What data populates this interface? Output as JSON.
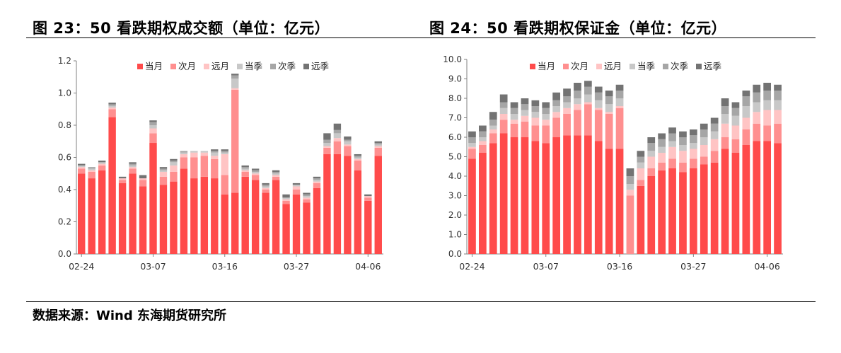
{
  "titles": {
    "left": "图 23：50 看跌期权成交额（单位：亿元）",
    "right": "图 24：50 看跌期权保证金（单位：亿元）"
  },
  "source": "数据来源：Wind   东海期货研究所",
  "colors": [
    "#ff4b4b",
    "#ff8f8f",
    "#ffc4c4",
    "#c8c8c8",
    "#a6a6a6",
    "#737373"
  ],
  "chart_data": [
    {
      "type": "bar",
      "stacked": true,
      "ylim": [
        0,
        1.2
      ],
      "yticks": [
        "0.0",
        "0.2",
        "0.4",
        "0.6",
        "0.8",
        "1.0",
        "1.2"
      ],
      "xtick_labels": [
        {
          "index": 0,
          "label": "02-24"
        },
        {
          "index": 7,
          "label": "03-07"
        },
        {
          "index": 14,
          "label": "03-16"
        },
        {
          "index": 21,
          "label": "03-27"
        },
        {
          "index": 28,
          "label": "04-06"
        }
      ],
      "legend": [
        "当月",
        "次月",
        "远月",
        "当季",
        "次季",
        "远季"
      ],
      "legend_position": "top",
      "grid": false,
      "series": [
        {
          "name": "当月",
          "values": [
            0.5,
            0.47,
            0.52,
            0.85,
            0.44,
            0.5,
            0.42,
            0.69,
            0.43,
            0.45,
            0.53,
            0.47,
            0.48,
            0.47,
            0.37,
            0.38,
            0.48,
            0.46,
            0.38,
            0.46,
            0.31,
            0.37,
            0.32,
            0.41,
            0.62,
            0.62,
            0.61,
            0.52,
            0.33,
            0.61
          ]
        },
        {
          "name": "次月",
          "values": [
            0.03,
            0.04,
            0.03,
            0.05,
            0.02,
            0.03,
            0.04,
            0.06,
            0.05,
            0.06,
            0.07,
            0.13,
            0.13,
            0.12,
            0.12,
            0.64,
            0.03,
            0.03,
            0.02,
            0.02,
            0.02,
            0.03,
            0.02,
            0.03,
            0.04,
            0.08,
            0.06,
            0.06,
            0.02,
            0.05
          ]
        },
        {
          "name": "远月",
          "values": [
            0.01,
            0.01,
            0.01,
            0.01,
            0.01,
            0.01,
            0.01,
            0.03,
            0.03,
            0.04,
            0.02,
            0.03,
            0.02,
            0.02,
            0.13,
            0.01,
            0.01,
            0.01,
            0.01,
            0.01,
            0.01,
            0.02,
            0.01,
            0.01,
            0.01,
            0.02,
            0.01,
            0.01,
            0.01,
            0.01
          ]
        },
        {
          "name": "当季",
          "values": [
            0.01,
            0.01,
            0.01,
            0.01,
            0.0,
            0.01,
            0.0,
            0.02,
            0.01,
            0.02,
            0.01,
            0.01,
            0.01,
            0.02,
            0.01,
            0.06,
            0.01,
            0.01,
            0.01,
            0.01,
            0.01,
            0.01,
            0.01,
            0.01,
            0.02,
            0.03,
            0.02,
            0.01,
            0.0,
            0.01
          ]
        },
        {
          "name": "次季",
          "values": [
            0.0,
            0.01,
            0.0,
            0.01,
            0.0,
            0.01,
            0.0,
            0.02,
            0.01,
            0.01,
            0.01,
            0.0,
            0.0,
            0.01,
            0.01,
            0.02,
            0.01,
            0.01,
            0.01,
            0.01,
            0.0,
            0.0,
            0.01,
            0.01,
            0.02,
            0.02,
            0.01,
            0.01,
            0.0,
            0.01
          ]
        },
        {
          "name": "远季",
          "values": [
            0.01,
            0.0,
            0.01,
            0.01,
            0.01,
            0.01,
            0.02,
            0.01,
            0.01,
            0.01,
            0.0,
            0.0,
            0.0,
            0.01,
            0.01,
            0.01,
            0.01,
            0.01,
            0.01,
            0.01,
            0.02,
            0.01,
            0.01,
            0.01,
            0.04,
            0.04,
            0.02,
            0.01,
            0.01,
            0.01
          ]
        }
      ]
    },
    {
      "type": "bar",
      "stacked": true,
      "ylim": [
        0,
        10
      ],
      "yticks": [
        "0.0",
        "1.0",
        "2.0",
        "3.0",
        "4.0",
        "5.0",
        "6.0",
        "7.0",
        "8.0",
        "9.0",
        "10.0"
      ],
      "xtick_labels": [
        {
          "index": 0,
          "label": "02-24"
        },
        {
          "index": 7,
          "label": "03-07"
        },
        {
          "index": 14,
          "label": "03-16"
        },
        {
          "index": 21,
          "label": "03-27"
        },
        {
          "index": 28,
          "label": "04-06"
        }
      ],
      "legend": [
        "当月",
        "次月",
        "远月",
        "当季",
        "次季",
        "远季"
      ],
      "legend_position": "top",
      "grid": false,
      "series": [
        {
          "name": "当月",
          "values": [
            4.9,
            5.2,
            5.7,
            6.2,
            6.0,
            6.0,
            5.8,
            5.7,
            6.0,
            6.1,
            6.1,
            6.1,
            5.8,
            5.4,
            5.4,
            0.0,
            3.5,
            4.0,
            4.3,
            4.4,
            4.2,
            4.4,
            4.6,
            4.7,
            5.4,
            5.2,
            5.6,
            5.8,
            5.8,
            5.7
          ]
        },
        {
          "name": "次月",
          "values": [
            0.5,
            0.4,
            0.5,
            0.7,
            0.7,
            0.8,
            0.8,
            0.9,
            1.0,
            1.1,
            1.3,
            1.6,
            1.6,
            1.8,
            2.1,
            3.0,
            0.3,
            0.4,
            0.4,
            0.5,
            0.5,
            0.5,
            0.4,
            0.6,
            0.6,
            0.7,
            0.8,
            0.9,
            0.8,
            1.0
          ]
        },
        {
          "name": "远月",
          "values": [
            0.1,
            0.2,
            0.2,
            0.3,
            0.2,
            0.3,
            0.4,
            0.3,
            0.3,
            0.3,
            0.3,
            0.1,
            0.1,
            0.1,
            0.1,
            0.3,
            0.6,
            0.6,
            0.5,
            0.6,
            0.6,
            0.5,
            0.6,
            0.6,
            0.7,
            0.7,
            0.6,
            0.6,
            0.8,
            0.7
          ]
        },
        {
          "name": "当季",
          "values": [
            0.2,
            0.2,
            0.2,
            0.3,
            0.3,
            0.3,
            0.3,
            0.3,
            0.3,
            0.3,
            0.3,
            0.4,
            0.4,
            0.4,
            0.4,
            0.3,
            0.3,
            0.3,
            0.3,
            0.3,
            0.3,
            0.3,
            0.4,
            0.4,
            0.5,
            0.5,
            0.6,
            0.5,
            0.5,
            0.5
          ]
        },
        {
          "name": "次季",
          "values": [
            0.3,
            0.3,
            0.3,
            0.3,
            0.3,
            0.3,
            0.3,
            0.3,
            0.3,
            0.3,
            0.4,
            0.4,
            0.4,
            0.4,
            0.4,
            0.4,
            0.3,
            0.4,
            0.4,
            0.4,
            0.4,
            0.4,
            0.4,
            0.4,
            0.4,
            0.4,
            0.5,
            0.5,
            0.5,
            0.5
          ]
        },
        {
          "name": "远季",
          "values": [
            0.3,
            0.3,
            0.4,
            0.4,
            0.3,
            0.3,
            0.3,
            0.3,
            0.4,
            0.4,
            0.4,
            0.3,
            0.3,
            0.3,
            0.3,
            0.4,
            0.3,
            0.3,
            0.3,
            0.3,
            0.3,
            0.3,
            0.3,
            0.3,
            0.4,
            0.3,
            0.3,
            0.4,
            0.4,
            0.3
          ]
        }
      ]
    }
  ]
}
